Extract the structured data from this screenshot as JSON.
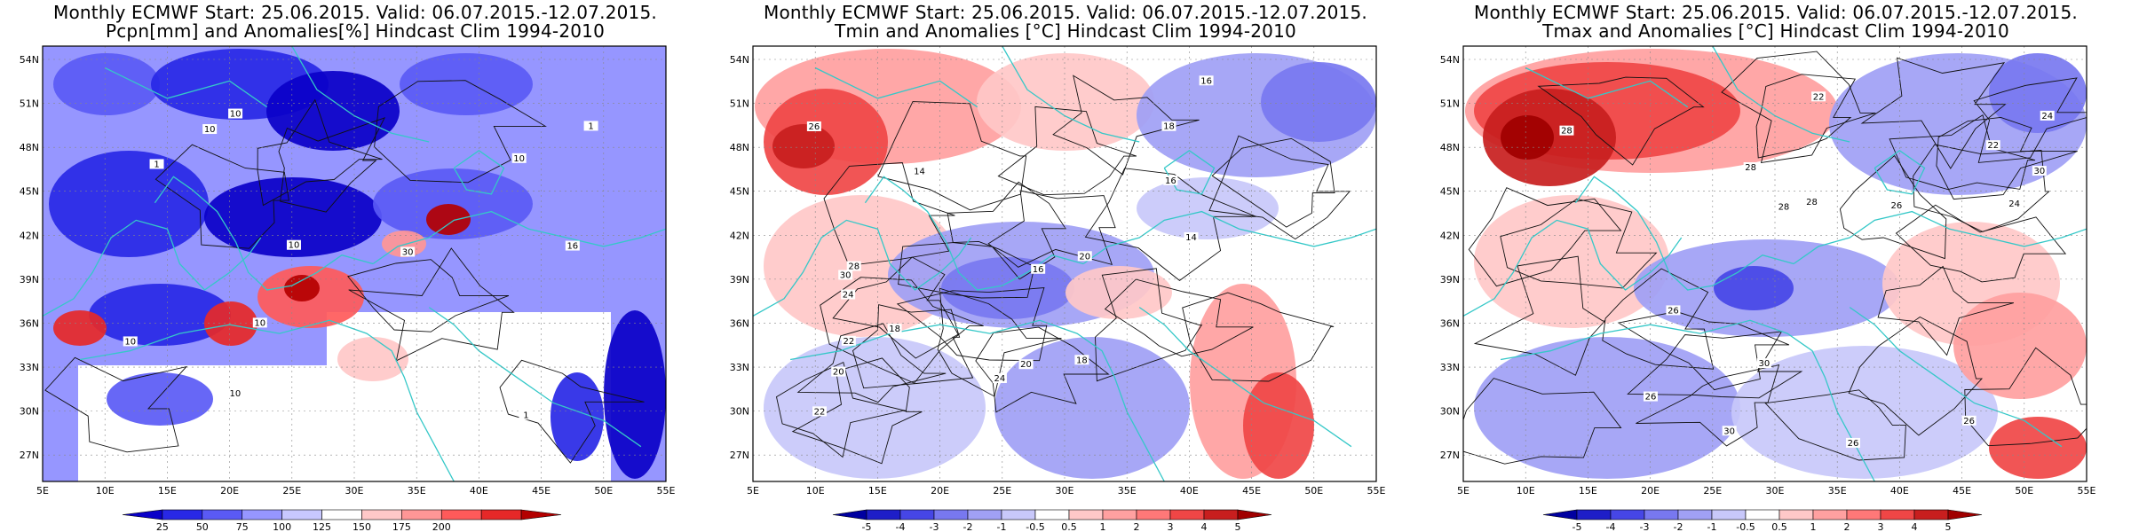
{
  "panels": [
    {
      "title_line1": "Monthly ECMWF Start: 25.06.2015. Valid: 06.07.2015.-12.07.2015.",
      "title_line2": "Pcpn[mm] and Anomalies[%] Hindcast Clim 1994-2010",
      "variable": "precipitation",
      "colorbar_labels": [
        "25",
        "50",
        "75",
        "100",
        "125",
        "150",
        "175",
        "200"
      ],
      "colorbar_colors": [
        "#0a00c8",
        "#2828e6",
        "#5a5af5",
        "#9696ff",
        "#c8c8ff",
        "#ffffff",
        "#ffc8c8",
        "#ff9696",
        "#ff5a5a",
        "#e62828",
        "#b40000"
      ],
      "contour_labels": [
        "10",
        "16",
        "10",
        "1",
        "10",
        "1",
        "30",
        "10",
        "10",
        "1",
        "10",
        "10"
      ]
    },
    {
      "title_line1": "Monthly ECMWF Start: 25.06.2015. Valid: 06.07.2015.-12.07.2015.",
      "title_line2": "Tmin and Anomalies [°C] Hindcast Clim 1994-2010",
      "variable": "tmin",
      "colorbar_labels": [
        "-5",
        "-4",
        "-3",
        "-2",
        "-1",
        "-0.5",
        "0.5",
        "1",
        "2",
        "3",
        "4",
        "5"
      ],
      "colorbar_colors": [
        "#0000a0",
        "#1e1ec8",
        "#4646e6",
        "#7878f0",
        "#a0a0f5",
        "#c8c8fa",
        "#ffffff",
        "#ffc8c8",
        "#ffa0a0",
        "#ff7878",
        "#f04646",
        "#c81e1e",
        "#a00000"
      ],
      "contour_labels": [
        "16",
        "14",
        "16",
        "18",
        "20",
        "14",
        "22",
        "24",
        "20",
        "18",
        "24",
        "22",
        "20",
        "26",
        "28",
        "30",
        "18",
        "16"
      ]
    },
    {
      "title_line1": "Monthly ECMWF Start: 25.06.2015. Valid: 06.07.2015.-12.07.2015.",
      "title_line2": "Tmax and Anomalies [°C] Hindcast Clim 1994-2010",
      "variable": "tmax",
      "colorbar_labels": [
        "-5",
        "-4",
        "-3",
        "-2",
        "-1",
        "-0.5",
        "0.5",
        "1",
        "2",
        "3",
        "4",
        "5"
      ],
      "colorbar_colors": [
        "#0000a0",
        "#1e1ec8",
        "#4646e6",
        "#7878f0",
        "#a0a0f5",
        "#c8c8fa",
        "#ffffff",
        "#ffc8c8",
        "#ffa0a0",
        "#ff7878",
        "#f04646",
        "#c81e1e",
        "#a00000"
      ],
      "contour_labels": [
        "26",
        "22",
        "24",
        "28",
        "30",
        "26",
        "28",
        "30",
        "26",
        "28",
        "30",
        "24",
        "26",
        "28",
        "22",
        "26"
      ]
    }
  ],
  "lat_labels": [
    "54N",
    "51N",
    "48N",
    "45N",
    "42N",
    "39N",
    "36N",
    "33N",
    "30N",
    "27N"
  ],
  "lon_labels": [
    "5E",
    "10E",
    "15E",
    "20E",
    "25E",
    "30E",
    "35E",
    "40E",
    "45E",
    "50E",
    "55E"
  ],
  "colors": {
    "coast": "#35c8c8",
    "contour": "#111111",
    "grid": "#888888"
  }
}
